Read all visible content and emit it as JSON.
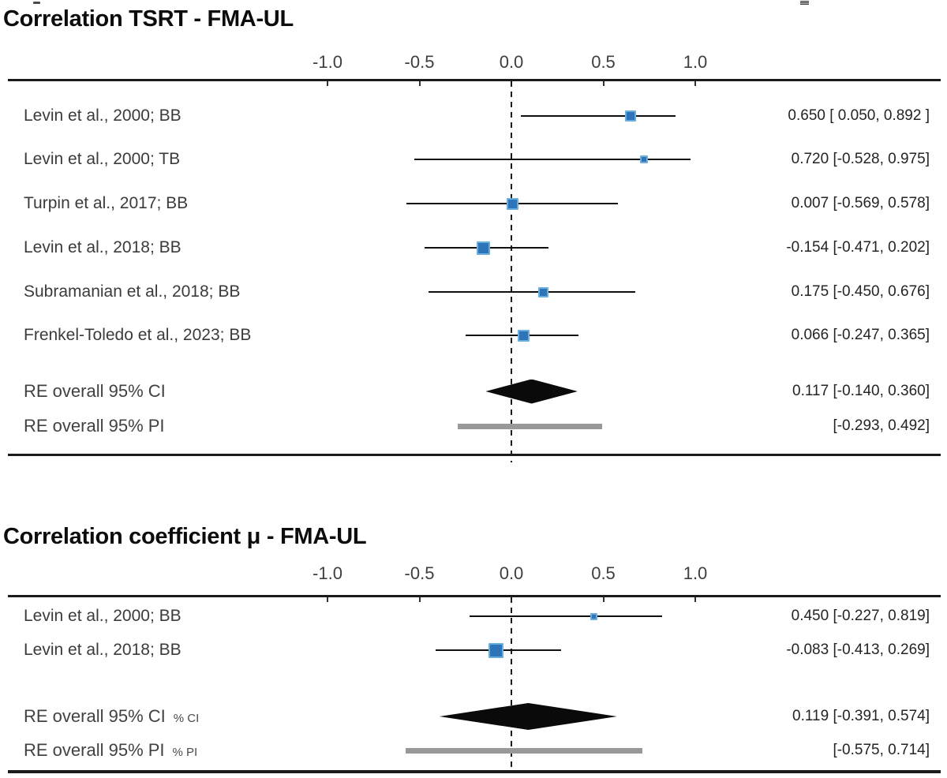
{
  "colors": {
    "marker_fill": "#2e74b8",
    "marker_edge": "#6aaede",
    "ci_line": "#101010",
    "diamond": "#0a0a0a",
    "pi_bar": "#999999",
    "axis_rule": "#1b1b1b",
    "zero_line": "#1c1c1c",
    "label_text": "#3b3b3b",
    "title_text": "#0c0c0c"
  },
  "chart_data": [
    {
      "type": "scatter",
      "variant": "forest_plot",
      "title": "Correlation TSRT - FMA-UL",
      "xlabel": "",
      "ylabel": "",
      "xlim": [
        -1.25,
        1.25
      ],
      "grid": false,
      "zero_line": 0.0,
      "tick_values": [
        -1.0,
        -0.5,
        0.0,
        0.5,
        1.0
      ],
      "tick_labels": [
        "-1.0",
        "-0.5",
        "0.0",
        "0.5",
        "1.0"
      ],
      "studies": [
        {
          "label": "Levin et al., 2000; BB",
          "estimate": 0.65,
          "ci_low": 0.05,
          "ci_high": 0.892,
          "display": "0.650 [ 0.050, 0.892 ]",
          "marker_size": 14
        },
        {
          "label": "Levin et al., 2000; TB",
          "estimate": 0.72,
          "ci_low": -0.528,
          "ci_high": 0.975,
          "display": "0.720 [-0.528, 0.975]",
          "marker_size": 10
        },
        {
          "label": "Turpin et al., 2017; BB",
          "estimate": 0.007,
          "ci_low": -0.569,
          "ci_high": 0.578,
          "display": "0.007 [-0.569, 0.578]",
          "marker_size": 15
        },
        {
          "label": "Levin et al., 2018; BB",
          "estimate": -0.154,
          "ci_low": -0.471,
          "ci_high": 0.202,
          "display": "-0.154 [-0.471, 0.202]",
          "marker_size": 17
        },
        {
          "label": "Subramanian et al., 2018; BB",
          "estimate": 0.175,
          "ci_low": -0.45,
          "ci_high": 0.676,
          "display": "0.175 [-0.450, 0.676]",
          "marker_size": 13
        },
        {
          "label": "Frenkel-Toledo et al., 2023; BB",
          "estimate": 0.066,
          "ci_low": -0.247,
          "ci_high": 0.365,
          "display": "0.066 [-0.247, 0.365]",
          "marker_size": 15
        }
      ],
      "summaries": [
        {
          "label": "RE overall 95% CI",
          "shape": "diamond",
          "estimate": 0.117,
          "ci_low": -0.14,
          "ci_high": 0.36,
          "display": "0.117 [-0.140, 0.360]"
        },
        {
          "label": "RE overall 95% PI",
          "shape": "bar",
          "ci_low": -0.293,
          "ci_high": 0.492,
          "display": "[-0.293, 0.492]"
        }
      ]
    },
    {
      "type": "scatter",
      "variant": "forest_plot",
      "title": "Correlation coefficient μ - FMA-UL",
      "xlabel": "",
      "ylabel": "",
      "xlim": [
        -1.25,
        1.25
      ],
      "grid": false,
      "zero_line": 0.0,
      "tick_values": [
        -1.0,
        -0.5,
        0.0,
        0.5,
        1.0
      ],
      "tick_labels": [
        "-1.0",
        "-0.5",
        "0.0",
        "0.5",
        "1.0"
      ],
      "studies": [
        {
          "label": "Levin et al., 2000; BB",
          "estimate": 0.45,
          "ci_low": -0.227,
          "ci_high": 0.819,
          "display": "0.450 [-0.227, 0.819]",
          "marker_size": 9
        },
        {
          "label": "Levin et al., 2018; BB",
          "estimate": -0.083,
          "ci_low": -0.413,
          "ci_high": 0.269,
          "display": "-0.083 [-0.413, 0.269]",
          "marker_size": 19
        }
      ],
      "summaries": [
        {
          "label": "RE overall 95% CI",
          "suffix": "% CI",
          "shape": "diamond",
          "estimate": 0.119,
          "ci_low": -0.391,
          "ci_high": 0.574,
          "display": "0.119 [-0.391, 0.574]"
        },
        {
          "label": "RE overall 95% PI",
          "suffix": "% PI",
          "shape": "bar",
          "ci_low": -0.575,
          "ci_high": 0.714,
          "display": "[-0.575, 0.714]"
        }
      ]
    }
  ]
}
